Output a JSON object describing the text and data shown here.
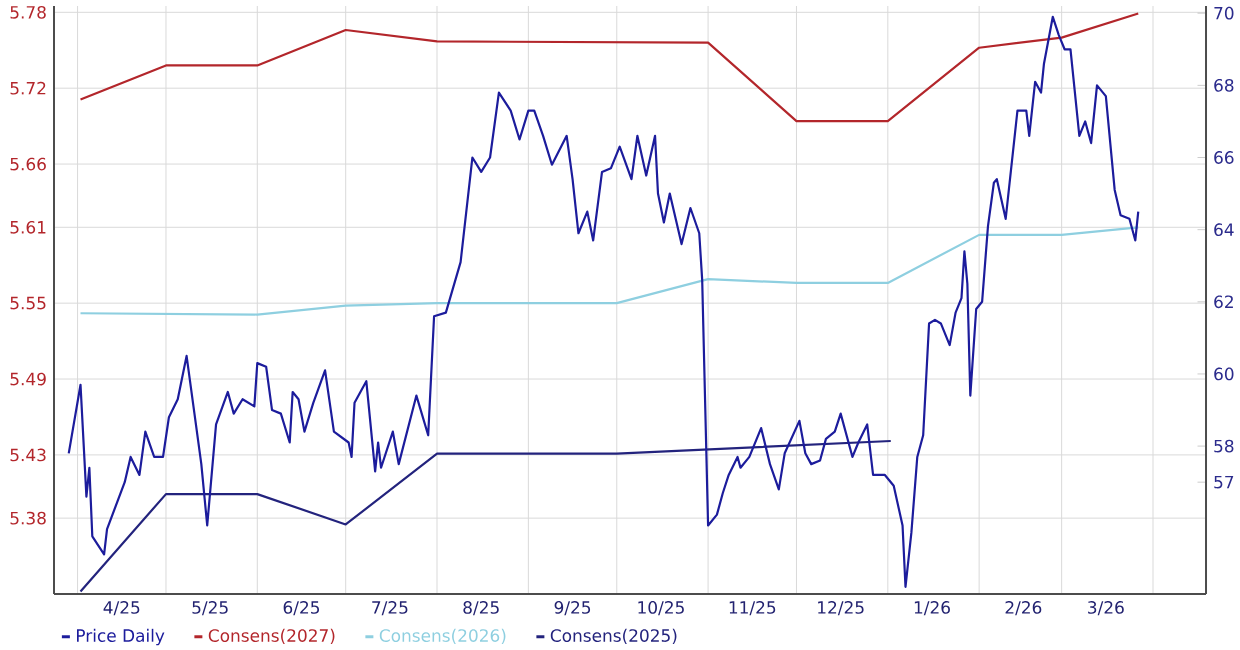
{
  "chart_data": {
    "type": "line",
    "xlim": [
      "2025-03-24",
      "2026-04-19"
    ],
    "xticks": [
      {
        "value": "2025-04-01",
        "label": null
      },
      {
        "value": "2025-04-16",
        "label": "4/25"
      },
      {
        "value": "2025-05-01",
        "label": null
      },
      {
        "value": "2025-05-16",
        "label": "5/25"
      },
      {
        "value": "2025-06-01",
        "label": null
      },
      {
        "value": "2025-06-16",
        "label": "6/25"
      },
      {
        "value": "2025-07-01",
        "label": null
      },
      {
        "value": "2025-07-16",
        "label": "7/25"
      },
      {
        "value": "2025-08-01",
        "label": null
      },
      {
        "value": "2025-08-16",
        "label": "8/25"
      },
      {
        "value": "2025-09-01",
        "label": null
      },
      {
        "value": "2025-09-16",
        "label": "9/25"
      },
      {
        "value": "2025-10-01",
        "label": null
      },
      {
        "value": "2025-10-16",
        "label": "10/25"
      },
      {
        "value": "2025-11-01",
        "label": null
      },
      {
        "value": "2025-11-16",
        "label": "11/25"
      },
      {
        "value": "2025-12-01",
        "label": null
      },
      {
        "value": "2025-12-16",
        "label": "12/25"
      },
      {
        "value": "2026-01-01",
        "label": null
      },
      {
        "value": "2026-01-16",
        "label": "1/26"
      },
      {
        "value": "2026-02-01",
        "label": null
      },
      {
        "value": "2026-02-16",
        "label": "2/26"
      },
      {
        "value": "2026-03-01",
        "label": null
      },
      {
        "value": "2026-03-16",
        "label": "3/26"
      },
      {
        "value": "2026-04-01",
        "label": null
      }
    ],
    "ylim": [
      5.32,
      5.785
    ],
    "yticks": [
      5.38,
      5.43,
      5.49,
      5.55,
      5.61,
      5.66,
      5.72,
      5.78
    ],
    "y2lim": [
      53.9,
      70.2
    ],
    "y2ticks": [
      57,
      58,
      60,
      62,
      64,
      66,
      68,
      70
    ],
    "grid": true,
    "legend": "bottom",
    "series": [
      {
        "name": "Price Daily",
        "color": "#1c1c9c",
        "axis": "y2",
        "x": [
          "2025-03-29",
          "2025-04-02",
          "2025-04-04",
          "2025-04-05",
          "2025-04-06",
          "2025-04-10",
          "2025-04-11",
          "2025-04-17",
          "2025-04-19",
          "2025-04-22",
          "2025-04-24",
          "2025-04-27",
          "2025-04-30",
          "2025-05-02",
          "2025-05-05",
          "2025-05-08",
          "2025-05-13",
          "2025-05-15",
          "2025-05-18",
          "2025-05-22",
          "2025-05-24",
          "2025-05-27",
          "2025-05-31",
          "2025-06-01",
          "2025-06-04",
          "2025-06-06",
          "2025-06-09",
          "2025-06-12",
          "2025-06-13",
          "2025-06-15",
          "2025-06-17",
          "2025-06-20",
          "2025-06-24",
          "2025-06-27",
          "2025-07-02",
          "2025-07-03",
          "2025-07-04",
          "2025-07-08",
          "2025-07-11",
          "2025-07-12",
          "2025-07-13",
          "2025-07-17",
          "2025-07-19",
          "2025-07-25",
          "2025-07-29",
          "2025-07-31",
          "2025-08-04",
          "2025-08-09",
          "2025-08-13",
          "2025-08-16",
          "2025-08-19",
          "2025-08-22",
          "2025-08-26",
          "2025-08-29",
          "2025-09-01",
          "2025-09-03",
          "2025-09-06",
          "2025-09-09",
          "2025-09-14",
          "2025-09-16",
          "2025-09-18",
          "2025-09-21",
          "2025-09-23",
          "2025-09-26",
          "2025-09-29",
          "2025-10-02",
          "2025-10-06",
          "2025-10-08",
          "2025-10-11",
          "2025-10-14",
          "2025-10-15",
          "2025-10-17",
          "2025-10-19",
          "2025-10-23",
          "2025-10-26",
          "2025-10-29",
          "2025-10-30",
          "2025-11-01",
          "2025-11-04",
          "2025-11-06",
          "2025-11-08",
          "2025-11-11",
          "2025-11-12",
          "2025-11-15",
          "2025-11-19",
          "2025-11-22",
          "2025-11-25",
          "2025-11-27",
          "2025-12-02",
          "2025-12-04",
          "2025-12-06",
          "2025-12-09",
          "2025-12-11",
          "2025-12-14",
          "2025-12-16",
          "2025-12-20",
          "2025-12-22",
          "2025-12-25",
          "2025-12-27",
          "2025-12-31",
          "2026-01-03",
          "2026-01-06",
          "2026-01-07",
          "2026-01-09",
          "2026-01-11",
          "2026-01-13",
          "2026-01-15",
          "2026-01-17",
          "2026-01-19",
          "2026-01-22",
          "2026-01-24",
          "2026-01-26",
          "2026-01-27",
          "2026-01-28",
          "2026-01-29",
          "2026-01-31",
          "2026-02-02",
          "2026-02-04",
          "2026-02-06",
          "2026-02-07",
          "2026-02-10",
          "2026-02-12",
          "2026-02-14",
          "2026-02-17",
          "2026-02-18",
          "2026-02-20",
          "2026-02-22",
          "2026-02-23",
          "2026-02-26",
          "2026-02-28",
          "2026-03-02",
          "2026-03-04",
          "2026-03-07",
          "2026-03-09",
          "2026-03-11",
          "2026-03-13",
          "2026-03-16",
          "2026-03-19",
          "2026-03-21",
          "2026-03-24",
          "2026-03-26",
          "2026-03-27"
        ],
        "values": [
          57.8,
          59.7,
          56.6,
          57.4,
          55.5,
          55.0,
          55.7,
          57.0,
          57.7,
          57.2,
          58.4,
          57.7,
          57.7,
          58.8,
          59.3,
          60.5,
          57.5,
          55.8,
          58.6,
          59.5,
          58.9,
          59.3,
          59.1,
          60.3,
          60.2,
          59.0,
          58.9,
          58.1,
          59.5,
          59.3,
          58.4,
          59.2,
          60.1,
          58.4,
          58.1,
          57.7,
          59.2,
          59.8,
          57.3,
          58.1,
          57.4,
          58.4,
          57.5,
          59.4,
          58.3,
          61.6,
          61.7,
          63.1,
          66.0,
          65.6,
          66.0,
          67.8,
          67.3,
          66.5,
          67.3,
          67.3,
          66.6,
          65.8,
          66.6,
          65.4,
          63.9,
          64.5,
          63.7,
          65.6,
          65.7,
          66.3,
          65.4,
          66.6,
          65.5,
          66.6,
          65.0,
          64.2,
          65.0,
          63.6,
          64.6,
          63.9,
          62.6,
          55.8,
          56.1,
          56.7,
          57.2,
          57.7,
          57.4,
          57.7,
          58.5,
          57.5,
          56.8,
          57.8,
          58.7,
          57.8,
          57.5,
          57.6,
          58.2,
          58.4,
          58.9,
          57.7,
          58.1,
          58.6,
          57.2,
          57.2,
          56.9,
          55.8,
          54.1,
          55.6,
          57.7,
          58.3,
          61.4,
          61.5,
          61.4,
          60.8,
          61.7,
          62.1,
          63.4,
          62.5,
          59.4,
          61.8,
          62.0,
          64.1,
          65.3,
          65.4,
          64.3,
          65.8,
          67.3,
          67.3,
          66.6,
          68.1,
          67.8,
          68.6,
          69.9,
          69.4,
          69.0,
          69.0,
          66.6,
          67.0,
          66.4,
          68.0,
          67.7,
          65.1,
          64.4,
          64.3,
          63.7,
          64.5
        ]
      },
      {
        "name": "Consens(2027)",
        "color": "#b3262b",
        "x": [
          "2025-04-02",
          "2025-05-01",
          "2025-06-01",
          "2025-07-01",
          "2025-08-01",
          "2025-11-01",
          "2025-12-01",
          "2026-01-01",
          "2026-02-01",
          "2026-03-01",
          "2026-03-27"
        ],
        "values": [
          5.711,
          5.738,
          5.738,
          5.766,
          5.757,
          5.756,
          5.694,
          5.694,
          5.752,
          5.76,
          5.779
        ]
      },
      {
        "name": "Consens(2026)",
        "color": "#8ecfe0",
        "x": [
          "2025-04-02",
          "2025-06-01",
          "2025-07-01",
          "2025-08-01",
          "2025-10-01",
          "2025-11-01",
          "2025-12-01",
          "2026-01-01",
          "2026-02-01",
          "2026-03-01",
          "2026-03-27"
        ],
        "values": [
          5.542,
          5.541,
          5.548,
          5.55,
          5.55,
          5.569,
          5.566,
          5.566,
          5.604,
          5.604,
          5.61
        ]
      },
      {
        "name": "Consens(2025)",
        "color": "#23237d",
        "x": [
          "2025-04-02",
          "2025-05-01",
          "2025-06-01",
          "2025-07-01",
          "2025-08-01",
          "2025-10-01",
          "2026-01-02"
        ],
        "values": [
          5.322,
          5.399,
          5.399,
          5.375,
          5.431,
          5.431,
          5.441
        ]
      }
    ]
  }
}
